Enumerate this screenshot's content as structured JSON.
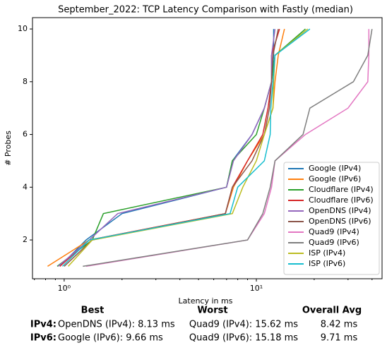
{
  "chart_data": {
    "type": "line",
    "title": "September_2022: TCP Latency Comparison with Fastly (median)",
    "xlabel": "Latency in ms",
    "ylabel": "# Probes",
    "xscale": "log",
    "xlim": [
      0.684,
      45.1
    ],
    "ylim": [
      0.53,
      10.43
    ],
    "xticks": [
      {
        "value": 1,
        "label": "10⁰"
      },
      {
        "value": 10,
        "label": "10¹"
      }
    ],
    "xminorticks": [
      0.7,
      0.8,
      0.9,
      2,
      3,
      4,
      5,
      6,
      7,
      8,
      9,
      20,
      30,
      40
    ],
    "yticks": [
      2,
      4,
      6,
      8,
      10
    ],
    "legend": "lower right",
    "series": [
      {
        "name": "Google (IPv4)",
        "color": "#1f77b4",
        "x": [
          0.95,
          1.3,
          2.0,
          7.0,
          7.5,
          9.5,
          11,
          12,
          12.3,
          12.3
        ],
        "y": [
          1,
          2,
          3,
          4,
          5,
          6,
          7,
          8,
          9,
          10
        ]
      },
      {
        "name": "Google (IPv6)",
        "color": "#ff7f0e",
        "x": [
          0.82,
          1.35,
          6.9,
          7.6,
          9.0,
          11,
          12.2,
          12.5,
          13,
          14
        ],
        "y": [
          1,
          2,
          3,
          4,
          5,
          6,
          7,
          8,
          9,
          10
        ]
      },
      {
        "name": "Cloudflare (IPv4)",
        "color": "#2ca02c",
        "x": [
          0.92,
          1.4,
          1.6,
          7.0,
          7.5,
          10,
          11,
          12,
          12.5,
          18
        ],
        "y": [
          1,
          2,
          3,
          4,
          5,
          6,
          7,
          8,
          9,
          10
        ]
      },
      {
        "name": "Cloudflare (IPv6)",
        "color": "#d62728",
        "x": [
          0.95,
          1.35,
          6.9,
          7.5,
          9.0,
          10.8,
          11.5,
          12,
          12,
          13.2
        ],
        "y": [
          1,
          2,
          3,
          4,
          5,
          6,
          7,
          8,
          9,
          10
        ]
      },
      {
        "name": "OpenDNS (IPv4)",
        "color": "#9467bd",
        "x": [
          0.93,
          1.35,
          1.9,
          7.0,
          7.6,
          9.5,
          11,
          12,
          12,
          12.5
        ],
        "y": [
          1,
          2,
          3,
          4,
          5,
          6,
          7,
          8,
          9,
          10
        ]
      },
      {
        "name": "OpenDNS (IPv6)",
        "color": "#8c564b",
        "x": [
          1.0,
          1.4,
          6.9,
          7.5,
          9.5,
          11,
          11.7,
          12,
          12.2,
          13
        ],
        "y": [
          1,
          2,
          3,
          4,
          5,
          6,
          7,
          8,
          9,
          10
        ]
      },
      {
        "name": "Quad9 (IPv4)",
        "color": "#e377c2",
        "x": [
          1.3,
          9.0,
          11,
          12,
          12.5,
          18,
          30,
          38,
          38.5,
          38.5
        ],
        "y": [
          1,
          2,
          3,
          4,
          5,
          6,
          7,
          8,
          9,
          10
        ]
      },
      {
        "name": "Quad9 (IPv6)",
        "color": "#7f7f7f",
        "x": [
          1.25,
          9.0,
          10.8,
          11.8,
          12.5,
          17.5,
          19,
          32,
          38,
          40
        ],
        "y": [
          1,
          2,
          3,
          4,
          5,
          6,
          7,
          8,
          9,
          10
        ]
      },
      {
        "name": "ISP (IPv4)",
        "color": "#bcbd22",
        "x": [
          1.05,
          1.4,
          7.5,
          8.5,
          10,
          11,
          12.2,
          12.3,
          12.5,
          18.5
        ],
        "y": [
          1,
          2,
          3,
          4,
          5,
          6,
          7,
          8,
          9,
          10
        ]
      },
      {
        "name": "ISP (IPv6)",
        "color": "#17becf",
        "x": [
          0.98,
          1.35,
          7.3,
          8.0,
          11,
          11.8,
          11.9,
          12.2,
          12.5,
          19
        ],
        "y": [
          1,
          2,
          3,
          4,
          5,
          6,
          7,
          8,
          9,
          10
        ]
      }
    ]
  },
  "summary": {
    "columns": [
      "Best",
      "Worst",
      "Overall Avg"
    ],
    "rows": [
      {
        "label": "IPv4:",
        "cells": [
          "OpenDNS (IPv4): 8.13 ms",
          "Quad9 (IPv4): 15.62 ms",
          "8.42 ms"
        ]
      },
      {
        "label": "IPv6:",
        "cells": [
          "Google (IPv6): 9.66 ms",
          "Quad9 (IPv6): 15.18 ms",
          "9.71 ms"
        ]
      }
    ]
  }
}
